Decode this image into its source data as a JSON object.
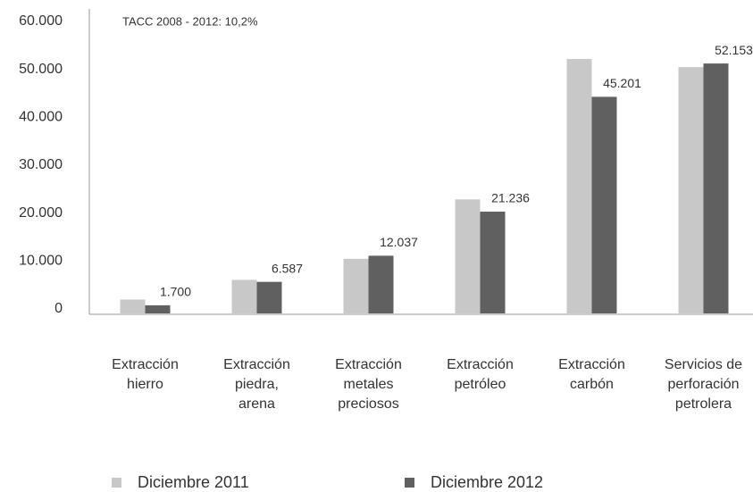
{
  "chart_data": {
    "type": "bar",
    "annotation": "TACC 2008 - 2012: 10,2%",
    "categories": [
      "Extracción\nhierro",
      "Extracción\npiedra,\narena",
      "Extracción\nmetales\npreciosos",
      "Extracción\npetróleo",
      "Extracción\ncarbón",
      "Servicios de\nperforación\npetrolera"
    ],
    "series": [
      {
        "name": "Diciembre 2011",
        "color": "#c8c8c8",
        "values": [
          2900,
          7000,
          11400,
          23800,
          53100,
          51400
        ]
      },
      {
        "name": "Diciembre 2012",
        "color": "#606060",
        "values": [
          1700,
          6587,
          12037,
          21236,
          45201,
          52153
        ],
        "value_labels": [
          "1.700",
          "6.587",
          "12.037",
          "21.236",
          "45.201",
          "52.153"
        ]
      }
    ],
    "ylim": [
      0,
      60000
    ],
    "yticks": [
      0,
      {
        "value": 10000,
        "label": "10.000"
      },
      {
        "value": 20000,
        "label": "20.000"
      },
      {
        "value": 30000,
        "label": "30.000"
      },
      {
        "value": 40000,
        "label": "40.000"
      },
      {
        "value": 50000,
        "label": "50.000"
      },
      {
        "value": 60000,
        "label": "60.000"
      }
    ],
    "legend": "bottom"
  }
}
